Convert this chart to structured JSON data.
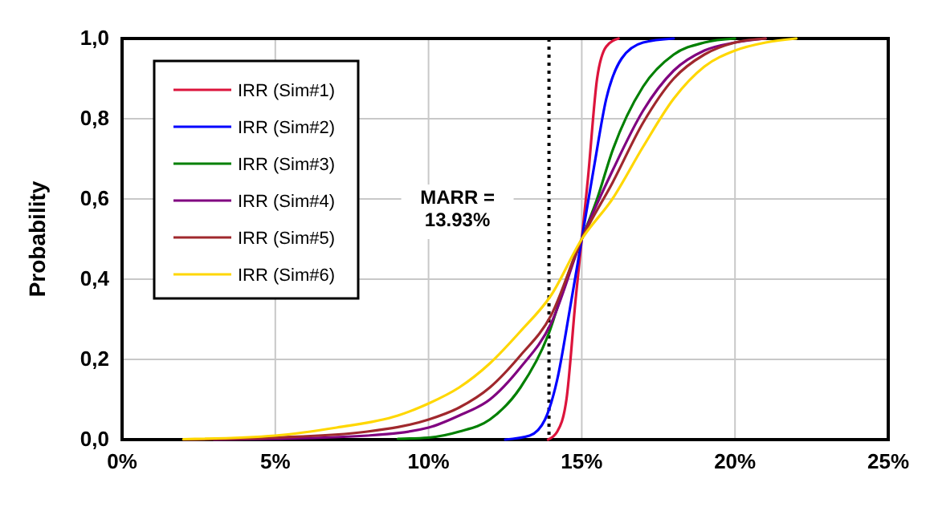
{
  "chart_data": {
    "type": "line",
    "ylabel": "Probability",
    "xlim": [
      0,
      25
    ],
    "ylim": [
      0,
      1
    ],
    "xticks": [
      {
        "value": 0,
        "label": "0%"
      },
      {
        "value": 5,
        "label": "5%"
      },
      {
        "value": 10,
        "label": "10%"
      },
      {
        "value": 15,
        "label": "15%"
      },
      {
        "value": 20,
        "label": "20%"
      },
      {
        "value": 25,
        "label": "25%"
      }
    ],
    "yticks": [
      {
        "value": 0,
        "label": "0,0"
      },
      {
        "value": 0.2,
        "label": "0,2"
      },
      {
        "value": 0.4,
        "label": "0,4"
      },
      {
        "value": 0.6,
        "label": "0,6"
      },
      {
        "value": 0.8,
        "label": "0,8"
      },
      {
        "value": 1,
        "label": "1,0"
      }
    ],
    "grid": true,
    "legend": "top left",
    "marker": "none",
    "line_style": "solid",
    "ref_lines": [
      {
        "axis": "x",
        "value": 13.93,
        "label": "MARR =\n13.93%",
        "line_style": "dotted",
        "color": "#000000"
      }
    ],
    "series": [
      {
        "name": "IRR (Sim#1)",
        "color": "#dc143c",
        "x": [
          13.9,
          14.2,
          14.5,
          14.8,
          15,
          15.2,
          15.5,
          15.8,
          16.2
        ],
        "values": [
          0,
          0.02,
          0.1,
          0.35,
          0.5,
          0.65,
          0.9,
          0.98,
          1
        ]
      },
      {
        "name": "IRR (Sim#2)",
        "color": "#0000ff",
        "x": [
          12.5,
          13.3,
          13.8,
          14.2,
          14.6,
          15,
          15.4,
          15.8,
          16.3,
          17,
          18
        ],
        "values": [
          0,
          0.01,
          0.05,
          0.15,
          0.32,
          0.5,
          0.68,
          0.85,
          0.95,
          0.99,
          1
        ]
      },
      {
        "name": "IRR (Sim#3)",
        "color": "#008000",
        "x": [
          9,
          10,
          11,
          12,
          13,
          13.9,
          14.5,
          15,
          15.5,
          16,
          17,
          18,
          19,
          20
        ],
        "values": [
          0.002,
          0.005,
          0.02,
          0.05,
          0.13,
          0.26,
          0.4,
          0.5,
          0.6,
          0.72,
          0.88,
          0.96,
          0.99,
          1
        ]
      },
      {
        "name": "IRR (Sim#4)",
        "color": "#800080",
        "x": [
          3,
          5,
          8,
          10,
          11,
          12,
          13,
          14,
          15,
          16,
          17,
          18,
          19,
          20,
          21
        ],
        "values": [
          0,
          0.002,
          0.01,
          0.03,
          0.06,
          0.1,
          0.18,
          0.29,
          0.5,
          0.67,
          0.82,
          0.92,
          0.97,
          0.99,
          1
        ]
      },
      {
        "name": "IRR (Sim#5)",
        "color": "#a0282d",
        "x": [
          2,
          5,
          8,
          10,
          11,
          12,
          13,
          14,
          15,
          16,
          17,
          18,
          19,
          20,
          21
        ],
        "values": [
          0,
          0.005,
          0.02,
          0.05,
          0.08,
          0.13,
          0.21,
          0.31,
          0.5,
          0.64,
          0.79,
          0.9,
          0.96,
          0.99,
          1
        ]
      },
      {
        "name": "IRR (Sim#6)",
        "color": "#ffd700",
        "x": [
          2,
          5,
          7,
          9,
          10,
          11,
          12,
          13,
          14,
          15,
          16,
          17,
          18,
          19,
          20,
          21,
          22
        ],
        "values": [
          0.001,
          0.01,
          0.03,
          0.06,
          0.09,
          0.13,
          0.19,
          0.27,
          0.36,
          0.5,
          0.6,
          0.73,
          0.85,
          0.93,
          0.97,
          0.99,
          1
        ]
      }
    ]
  }
}
